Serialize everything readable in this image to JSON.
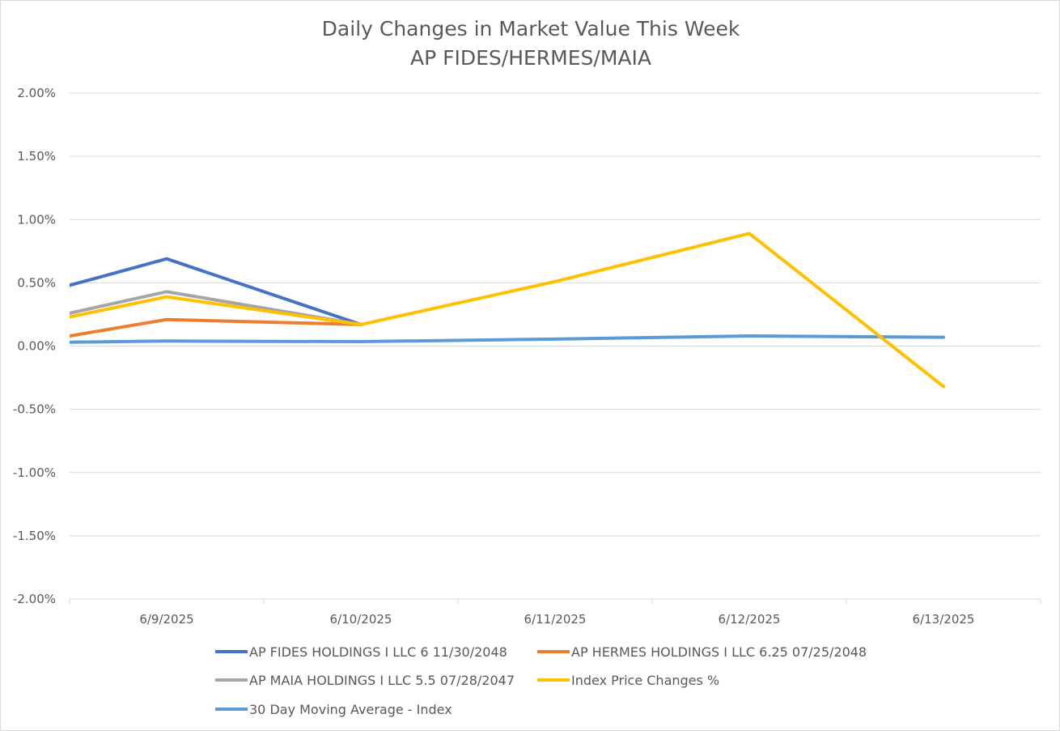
{
  "chart_data": {
    "type": "line",
    "title": "Daily Changes in Market Value This Week",
    "subtitle": "AP FIDES/HERMES/MAIA",
    "categories": [
      "6/9/2025",
      "6/10/2025",
      "6/11/2025",
      "6/12/2025",
      "6/13/2025"
    ],
    "ylim": [
      -2.0,
      2.0
    ],
    "yticks": [
      2.0,
      1.5,
      1.0,
      0.5,
      0.0,
      -0.5,
      -1.0,
      -1.5,
      -2.0
    ],
    "ytick_labels": [
      "2.00%",
      "1.50%",
      "1.00%",
      "0.50%",
      "0.00%",
      "-0.50%",
      "-1.00%",
      "-1.50%",
      "-2.00%"
    ],
    "y_unit": "percent",
    "grid": true,
    "legend_position": "bottom",
    "series": [
      {
        "name": "AP FIDES HOLDINGS I LLC 6 11/30/2048",
        "color": "#4472c4",
        "x": [
          -0.5,
          0,
          1
        ],
        "values": [
          0.48,
          0.69,
          0.17
        ]
      },
      {
        "name": "AP HERMES HOLDINGS I LLC 6.25 07/25/2048",
        "color": "#ed7d31",
        "x": [
          -0.5,
          0,
          1
        ],
        "values": [
          0.08,
          0.21,
          0.17
        ]
      },
      {
        "name": "AP MAIA HOLDINGS I LLC 5.5 07/28/2047",
        "color": "#a5a5a5",
        "x": [
          -0.5,
          0,
          1
        ],
        "values": [
          0.26,
          0.43,
          0.17
        ]
      },
      {
        "name": "Index Price Changes %",
        "color": "#ffc000",
        "x": [
          -0.5,
          0,
          1,
          2,
          3,
          4
        ],
        "values": [
          0.23,
          0.39,
          0.17,
          0.51,
          0.89,
          -0.32
        ]
      },
      {
        "name": "30 Day Moving Average - Index",
        "color": "#5b9bd5",
        "x": [
          -0.5,
          0,
          1,
          2,
          3,
          4
        ],
        "values": [
          0.03,
          0.04,
          0.035,
          0.055,
          0.08,
          0.07
        ]
      }
    ]
  }
}
